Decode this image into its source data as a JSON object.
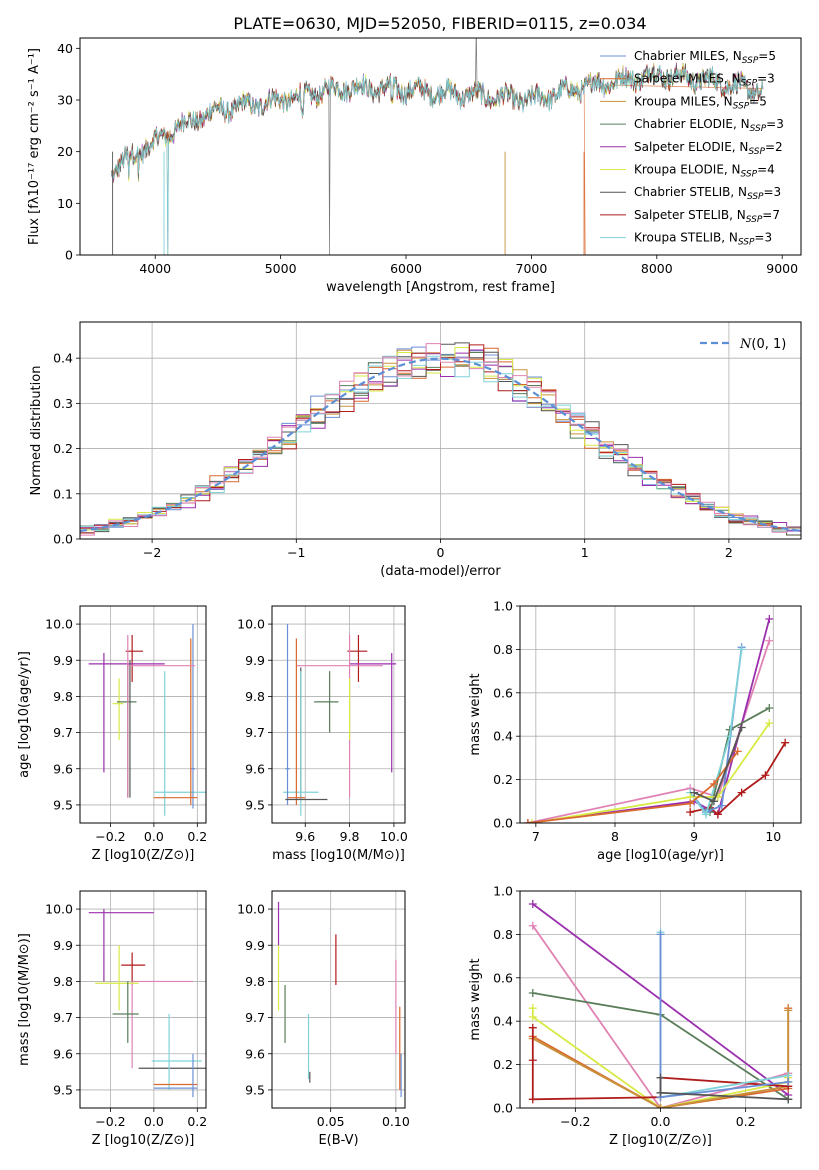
{
  "title": "PLATE=0630, MJD=52050, FIBERID=0115, z=0.034",
  "colors": {
    "chabrier_miles": "#6b8fd6",
    "salpeter_miles": "#d9692e",
    "kroupa_miles": "#c8923a",
    "chabrier_elodie": "#5a7d5a",
    "salpeter_elodie": "#9b2fae",
    "kroupa_elodie": "#d8ea45",
    "chabrier_stelib": "#555555",
    "salpeter_stelib": "#b01c1c",
    "kroupa_stelib": "#7fd3d8",
    "pink": "#e083b4",
    "gauss": "#5b8fd6"
  },
  "chart_data": [
    {
      "type": "line",
      "id": "spectrum",
      "xlabel": "wavelength [Angstrom, rest frame]",
      "ylabel": "Flux [fλ10⁻¹⁷ erg cm⁻² s⁻¹ A⁻¹]",
      "xlim": [
        3400,
        9150
      ],
      "ylim": [
        0,
        42
      ],
      "xticks": [
        4000,
        5000,
        6000,
        7000,
        8000,
        9000
      ],
      "yticks": [
        0,
        10,
        20,
        30,
        40
      ],
      "continuum": {
        "x": [
          3650,
          3800,
          4000,
          4200,
          4500,
          5000,
          5500,
          6000,
          6500,
          7000,
          7500,
          8000,
          8500,
          8850
        ],
        "y": [
          16,
          19,
          22,
          25,
          28,
          30,
          32.5,
          32,
          31,
          30,
          33,
          35,
          33.5,
          31.5
        ]
      },
      "legend": [
        "Chabrier MILES, N_SSP=5",
        "Salpeter MILES, N_SSP=3",
        "Kroupa MILES, N_SSP=5",
        "Chabrier ELODIE, N_SSP=3",
        "Salpeter ELODIE, N_SSP=2",
        "Kroupa ELODIE, N_SSP=4",
        "Chabrier STELIB, N_SSP=3",
        "Salpeter STELIB, N_SSP=7",
        "Kroupa STELIB, N_SSP=3"
      ]
    },
    {
      "type": "histogram",
      "id": "residuals",
      "xlabel": "(data-model)/error",
      "ylabel": "Normed distribution",
      "xlim": [
        -2.5,
        2.5
      ],
      "ylim": [
        0,
        0.48
      ],
      "xticks": [
        -2,
        -1,
        0,
        1,
        2
      ],
      "yticks": [
        0.0,
        0.1,
        0.2,
        0.3,
        0.4
      ],
      "legend": "N(0,1)",
      "bin_width": 0.1,
      "n_series": 9
    },
    {
      "type": "scatter",
      "id": "age_vs_Z",
      "xlabel": "Z [log10(Z/Z⊙)]",
      "ylabel": "age  [log10(age/yr)]",
      "xlim": [
        -0.34,
        0.24
      ],
      "ylim": [
        9.45,
        10.05
      ],
      "xticks": [
        -0.2,
        0.0,
        0.2
      ],
      "yticks": [
        9.5,
        9.6,
        9.7,
        9.8,
        9.9,
        10.0
      ],
      "points": [
        {
          "c": "kroupa_stelib",
          "x": 0.05,
          "xe": [
            0.0,
            0.3
          ],
          "y": 9.535,
          "ye": [
            9.47,
            9.87
          ]
        },
        {
          "c": "chabrier_miles",
          "x": 0.18,
          "xe": [
            0.17,
            0.19
          ],
          "y": 9.6,
          "ye": [
            9.49,
            10.0
          ]
        },
        {
          "c": "salpeter_miles",
          "x": 0.17,
          "xe": [
            0.0,
            0.2
          ],
          "y": 9.52,
          "ye": [
            9.5,
            9.96
          ]
        },
        {
          "c": "salpeter_stelib",
          "x": -0.1,
          "xe": [
            -0.13,
            -0.05
          ],
          "y": 9.925,
          "ye": [
            9.84,
            9.97
          ]
        },
        {
          "c": "salpeter_elodie",
          "x": -0.23,
          "xe": [
            -0.3,
            0.05
          ],
          "y": 9.89,
          "ye": [
            9.59,
            9.92
          ]
        },
        {
          "c": "kroupa_elodie",
          "x": -0.16,
          "xe": [
            -0.19,
            -0.14
          ],
          "y": 9.78,
          "ye": [
            9.68,
            9.85
          ]
        },
        {
          "c": "chabrier_elodie",
          "x": -0.12,
          "xe": [
            -0.17,
            -0.08
          ],
          "y": 9.785,
          "ye": [
            9.52,
            9.89
          ]
        },
        {
          "c": "chabrier_stelib",
          "x": -0.11,
          "xe": [
            -0.11,
            -0.11
          ],
          "y": 9.73,
          "ye": [
            9.52,
            9.9
          ]
        },
        {
          "c": "pink",
          "x": -0.12,
          "xe": [
            -0.12,
            0.19
          ],
          "y": 9.885,
          "ye": [
            9.52,
            9.97
          ]
        }
      ]
    },
    {
      "type": "scatter",
      "id": "age_vs_mass",
      "xlabel": "mass [log10(M/M⊙)]",
      "ylabel": "",
      "xlim": [
        9.45,
        10.05
      ],
      "ylim": [
        9.45,
        10.05
      ],
      "xticks": [
        9.6,
        9.8,
        10.0
      ],
      "yticks": [
        9.5,
        9.6,
        9.7,
        9.8,
        9.9,
        10.0
      ],
      "points": [
        {
          "c": "salpeter_stelib",
          "x": 9.84,
          "xe": [
            9.79,
            9.88
          ],
          "y": 9.925,
          "ye": [
            9.84,
            9.97
          ]
        },
        {
          "c": "salpeter_elodie",
          "x": 9.99,
          "xe": [
            9.8,
            10.01
          ],
          "y": 9.89,
          "ye": [
            9.59,
            9.92
          ]
        },
        {
          "c": "pink",
          "x": 9.8,
          "xe": [
            9.56,
            9.95
          ],
          "y": 9.885,
          "ye": [
            9.52,
            9.97
          ]
        },
        {
          "c": "kroupa_elodie",
          "x": 9.8,
          "xe": [
            9.8,
            9.8
          ],
          "y": 9.78,
          "ye": [
            9.68,
            9.85
          ]
        },
        {
          "c": "chabrier_elodie",
          "x": 9.71,
          "xe": [
            9.64,
            9.75
          ],
          "y": 9.785,
          "ye": [
            9.7,
            9.87
          ]
        },
        {
          "c": "chabrier_stelib",
          "x": 9.58,
          "xe": [
            9.58,
            9.58
          ],
          "y": 9.73,
          "ye": [
            9.52,
            9.88
          ]
        },
        {
          "c": "kroupa_stelib",
          "x": 9.58,
          "xe": [
            9.5,
            9.66
          ],
          "y": 9.535,
          "ye": [
            9.47,
            9.87
          ]
        },
        {
          "c": "chabrier_miles",
          "x": 9.52,
          "xe": [
            9.51,
            9.53
          ],
          "y": 9.6,
          "ye": [
            9.5,
            10.0
          ]
        },
        {
          "c": "salpeter_miles",
          "x": 9.56,
          "xe": [
            9.52,
            9.6
          ],
          "y": 9.52,
          "ye": [
            9.5,
            9.96
          ]
        },
        {
          "c": "chabrier_stelib",
          "x": 9.6,
          "xe": [
            9.51,
            9.7
          ],
          "y": 9.515,
          "ye": [
            9.515,
            9.515
          ]
        }
      ]
    },
    {
      "type": "line",
      "id": "weight_vs_age",
      "xlabel": "age  [log10(age/yr)]",
      "ylabel": "mass weight",
      "xlim": [
        6.8,
        10.35
      ],
      "ylim": [
        0,
        1.0
      ],
      "xticks": [
        7,
        8,
        9,
        10
      ],
      "yticks": [
        0.0,
        0.2,
        0.4,
        0.6,
        0.8,
        1.0
      ],
      "series": [
        {
          "c": "pink",
          "x": [
            6.9,
            8.95,
            9.3,
            9.95
          ],
          "y": [
            0.0,
            0.16,
            0.12,
            0.84
          ]
        },
        {
          "c": "salpeter_elodie",
          "x": [
            6.9,
            9.0,
            9.3,
            9.95
          ],
          "y": [
            0.0,
            0.1,
            0.04,
            0.94
          ]
        },
        {
          "c": "salpeter_stelib",
          "x": [
            8.95,
            9.2,
            9.3,
            9.6,
            9.9,
            10.15
          ],
          "y": [
            0.05,
            0.07,
            0.04,
            0.14,
            0.22,
            0.37
          ]
        },
        {
          "c": "chabrier_elodie",
          "x": [
            9.2,
            9.45,
            9.95
          ],
          "y": [
            0.05,
            0.43,
            0.53
          ]
        },
        {
          "c": "chabrier_miles",
          "x": [
            9.0,
            9.15,
            9.35,
            9.6
          ],
          "y": [
            0.12,
            0.05,
            0.08,
            0.81
          ]
        },
        {
          "c": "kroupa_stelib",
          "x": [
            8.95,
            9.15,
            9.45,
            9.6
          ],
          "y": [
            0.14,
            0.04,
            0.4,
            0.8
          ]
        },
        {
          "c": "kroupa_elodie",
          "x": [
            6.95,
            8.95,
            9.3,
            9.95
          ],
          "y": [
            0.0,
            0.12,
            0.12,
            0.46
          ]
        },
        {
          "c": "salpeter_miles",
          "x": [
            6.9,
            8.95,
            9.25,
            9.55
          ],
          "y": [
            0.0,
            0.09,
            0.18,
            0.33
          ]
        },
        {
          "c": "chabrier_stelib",
          "x": [
            9.0,
            9.25,
            9.6
          ],
          "y": [
            0.14,
            0.1,
            0.44
          ]
        }
      ]
    },
    {
      "type": "scatter",
      "id": "mass_vs_Z",
      "xlabel": "Z [log10(Z/Z⊙)]",
      "ylabel": "mass [log10(M/M⊙)]",
      "xlim": [
        -0.34,
        0.24
      ],
      "ylim": [
        9.45,
        10.05
      ],
      "xticks": [
        -0.2,
        0.0,
        0.2
      ],
      "yticks": [
        9.5,
        9.6,
        9.7,
        9.8,
        9.9,
        10.0
      ],
      "points": [
        {
          "c": "salpeter_elodie",
          "x": -0.23,
          "xe": [
            -0.3,
            0.0
          ],
          "y": 9.99,
          "ye": [
            9.8,
            10.0
          ]
        },
        {
          "c": "salpeter_stelib",
          "x": -0.1,
          "xe": [
            -0.15,
            -0.04
          ],
          "y": 9.845,
          "ye": [
            9.79,
            9.88
          ]
        },
        {
          "c": "pink",
          "x": -0.1,
          "xe": [
            -0.1,
            0.18
          ],
          "y": 9.8,
          "ye": [
            9.56,
            9.8
          ]
        },
        {
          "c": "kroupa_elodie",
          "x": -0.16,
          "xe": [
            -0.27,
            -0.07
          ],
          "y": 9.795,
          "ye": [
            9.72,
            9.9
          ]
        },
        {
          "c": "chabrier_elodie",
          "x": -0.12,
          "xe": [
            -0.19,
            -0.07
          ],
          "y": 9.71,
          "ye": [
            9.63,
            9.8
          ]
        },
        {
          "c": "chabrier_stelib",
          "x": 0.06,
          "xe": [
            -0.07,
            0.25
          ],
          "y": 9.56,
          "ye": [
            9.56,
            9.56
          ]
        },
        {
          "c": "kroupa_stelib",
          "x": 0.07,
          "xe": [
            -0.01,
            0.22
          ],
          "y": 9.58,
          "ye": [
            9.5,
            9.71
          ]
        },
        {
          "c": "salpeter_miles",
          "x": 0.15,
          "xe": [
            0.0,
            0.2
          ],
          "y": 9.515,
          "ye": [
            9.515,
            9.515
          ]
        },
        {
          "c": "chabrier_miles",
          "x": 0.18,
          "xe": [
            0.0,
            0.2
          ],
          "y": 9.505,
          "ye": [
            9.48,
            9.6
          ]
        }
      ]
    },
    {
      "type": "scatter",
      "id": "mass_vs_ebv",
      "xlabel": "E(B-V)",
      "ylabel": "",
      "xlim": [
        0.005,
        0.107
      ],
      "ylim": [
        9.45,
        10.05
      ],
      "xticks": [
        0.05,
        0.1
      ],
      "yticks": [
        9.5,
        9.6,
        9.7,
        9.8,
        9.9,
        10.0
      ],
      "points": [
        {
          "c": "salpeter_elodie",
          "x": 0.01,
          "ye": [
            9.9,
            10.02
          ]
        },
        {
          "c": "kroupa_elodie",
          "x": 0.01,
          "ye": [
            9.72,
            9.9
          ]
        },
        {
          "c": "chabrier_elodie",
          "x": 0.015,
          "ye": [
            9.63,
            9.79
          ]
        },
        {
          "c": "kroupa_stelib",
          "x": 0.033,
          "ye": [
            9.53,
            9.71
          ]
        },
        {
          "c": "chabrier_stelib",
          "x": 0.034,
          "ye": [
            9.52,
            9.55
          ]
        },
        {
          "c": "salpeter_stelib",
          "x": 0.054,
          "ye": [
            9.79,
            9.93
          ]
        },
        {
          "c": "pink",
          "x": 0.1,
          "ye": [
            9.6,
            9.86
          ]
        },
        {
          "c": "salpeter_miles",
          "x": 0.103,
          "ye": [
            9.5,
            9.73
          ]
        },
        {
          "c": "chabrier_miles",
          "x": 0.104,
          "ye": [
            9.48,
            9.6
          ]
        }
      ]
    },
    {
      "type": "line",
      "id": "weight_vs_Z",
      "xlabel": "Z [log10(Z/Z⊙)]",
      "ylabel": "mass weight",
      "xlim": [
        -0.33,
        0.33
      ],
      "ylim": [
        0,
        1.0
      ],
      "xticks": [
        -0.2,
        0.0,
        0.2
      ],
      "yticks": [
        0.0,
        0.2,
        0.4,
        0.6,
        0.8,
        1.0
      ],
      "series": [
        {
          "c": "salpeter_elodie",
          "x": [
            -0.3,
            0.3
          ],
          "y": [
            0.94,
            0.06
          ]
        },
        {
          "c": "pink",
          "x": [
            -0.3,
            0.0,
            0.3
          ],
          "y": [
            0.84,
            0.0,
            0.16
          ]
        },
        {
          "c": "chabrier_elodie",
          "x": [
            -0.3,
            0.0,
            0.3
          ],
          "y": [
            0.53,
            0.43,
            0.04
          ]
        },
        {
          "c": "kroupa_elodie",
          "x": [
            -0.3,
            -0.3,
            0.0,
            0.3,
            0.3
          ],
          "y": [
            0.46,
            0.42,
            0.0,
            0.12,
            0.14
          ]
        },
        {
          "c": "salpeter_miles",
          "x": [
            -0.3,
            0.0,
            0.3,
            0.3
          ],
          "y": [
            0.33,
            0.0,
            0.09,
            0.46
          ]
        },
        {
          "c": "kroupa_miles",
          "x": [
            -0.3,
            0.0,
            0.3,
            0.3
          ],
          "y": [
            0.32,
            0.0,
            0.1,
            0.45
          ]
        },
        {
          "c": "salpeter_stelib",
          "x": [
            -0.3,
            -0.3,
            -0.3,
            0.0,
            0.0,
            0.3
          ],
          "y": [
            0.37,
            0.22,
            0.04,
            0.05,
            0.14,
            0.1
          ]
        },
        {
          "c": "kroupa_stelib",
          "x": [
            0.0,
            0.0,
            0.3
          ],
          "y": [
            0.81,
            0.05,
            0.15
          ]
        },
        {
          "c": "chabrier_miles",
          "x": [
            0.0,
            0.0,
            0.3
          ],
          "y": [
            0.8,
            0.05,
            0.12
          ]
        },
        {
          "c": "chabrier_stelib",
          "x": [
            0.0,
            0.0,
            0.3
          ],
          "y": [
            0.14,
            0.07,
            0.04
          ]
        }
      ]
    }
  ]
}
